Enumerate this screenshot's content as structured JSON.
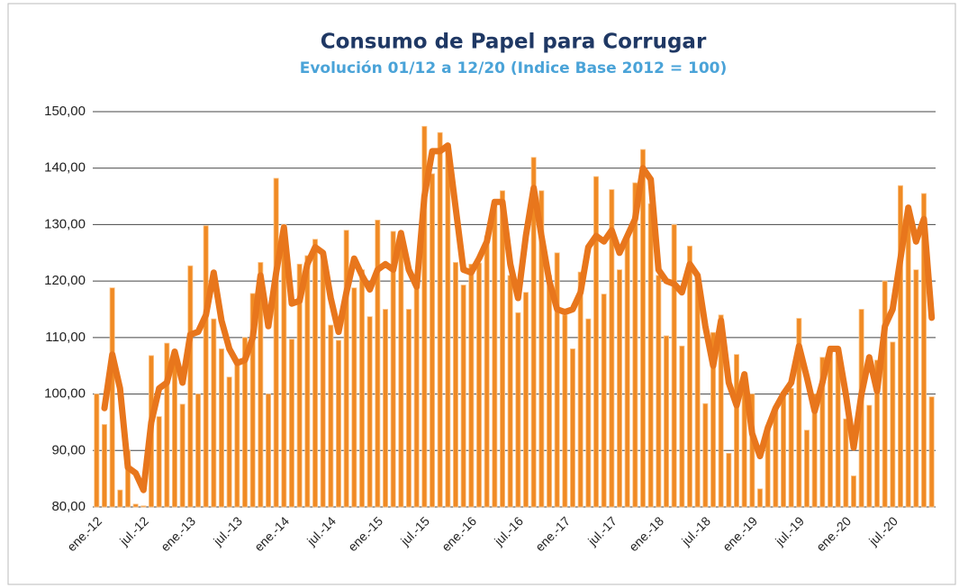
{
  "chart_data": {
    "type": "bar",
    "title": "Consumo de Papel para  Corrugar",
    "subtitle": "Evolución  01/12 a 12/20 (Indice Base 2012 = 100)",
    "categories": [
      "ene.-12",
      null,
      null,
      null,
      null,
      null,
      "jul.-12",
      null,
      null,
      null,
      null,
      null,
      "ene.-13",
      null,
      null,
      null,
      null,
      null,
      "jul.-13",
      null,
      null,
      null,
      null,
      null,
      "ene.-14",
      null,
      null,
      null,
      null,
      null,
      "jul.-14",
      null,
      null,
      null,
      null,
      null,
      "ene.-15",
      null,
      null,
      null,
      null,
      null,
      "jul.-15",
      null,
      null,
      null,
      null,
      null,
      "ene.-16",
      null,
      null,
      null,
      null,
      null,
      "jul.-16",
      null,
      null,
      null,
      null,
      null,
      "ene.-17",
      null,
      null,
      null,
      null,
      null,
      "jul.-17",
      null,
      null,
      null,
      null,
      null,
      "ene.-18",
      null,
      null,
      null,
      null,
      null,
      "jul.-18",
      null,
      null,
      null,
      null,
      null,
      "ene.-19",
      null,
      null,
      null,
      null,
      null,
      "jul.-19",
      null,
      null,
      null,
      null,
      null,
      "ene.-20",
      null,
      null,
      null,
      null,
      null,
      "jul.-20",
      null,
      null,
      null,
      null,
      null
    ],
    "series": [
      {
        "type": "bar",
        "color": "#f08a24",
        "values": [
          100,
          94.6,
          118.8,
          83,
          90,
          80.5,
          80.2,
          106.8,
          96,
          109,
          107,
          98.2,
          122.7,
          100,
          129.8,
          113.3,
          108,
          103,
          106,
          110,
          117.8,
          123.3,
          100,
          138.2,
          130,
          109.7,
          123,
          124.5,
          127.4,
          125,
          112.2,
          109.5,
          129,
          118.8,
          122,
          113.7,
          130.8,
          115,
          128.8,
          128.8,
          115,
          121,
          147.4,
          139,
          146.3,
          144,
          123.3,
          119.3,
          123,
          123.2,
          128,
          133.3,
          136,
          121,
          114.4,
          118,
          141.9,
          136,
          121,
          125,
          114,
          108,
          121.6,
          113.3,
          138.5,
          117.7,
          136.2,
          122,
          128,
          137.4,
          143.3,
          133.7,
          121,
          110.3,
          130,
          108.5,
          126.2,
          121,
          98.3,
          110.9,
          114,
          89.5,
          107,
          103,
          100,
          83.2,
          94.3,
          97,
          100.3,
          101,
          113.4,
          93.6,
          100,
          106.5,
          108.2,
          107,
          95.6,
          85.5,
          115,
          98,
          106,
          120,
          109.2,
          136.9,
          131,
          122,
          135.5,
          99.5
        ]
      },
      {
        "type": "line",
        "color": "#e8761c",
        "values": [
          null,
          97.5,
          107,
          101,
          87,
          86,
          83,
          95,
          101,
          102,
          107.5,
          102,
          110.5,
          111,
          114,
          121.5,
          113,
          108,
          105.5,
          106,
          110,
          121,
          112,
          121.5,
          129.5,
          116,
          116.5,
          123,
          126,
          125,
          117,
          111,
          118,
          124,
          121,
          118.5,
          122,
          123,
          122,
          128.5,
          122,
          119,
          135,
          143,
          143,
          144,
          133,
          122,
          121.5,
          124,
          127,
          134,
          134,
          123,
          117,
          128,
          136.5,
          128,
          120,
          115,
          114.5,
          115,
          118,
          126,
          128,
          127,
          129,
          125,
          128,
          131,
          140,
          138,
          122,
          120,
          119.5,
          118,
          123,
          121,
          112,
          105,
          113,
          102,
          98,
          103.5,
          93,
          89,
          94,
          97.5,
          100,
          102,
          108.5,
          103,
          97,
          102,
          108,
          108,
          100,
          90.5,
          100,
          106.5,
          100.5,
          112,
          115,
          124,
          133,
          127,
          131,
          113.5
        ]
      }
    ],
    "ylim": [
      80,
      150
    ],
    "yticks": [
      {
        "value": 80,
        "label": "80,00"
      },
      {
        "value": 90,
        "label": "90,00"
      },
      {
        "value": 100,
        "label": "100,00"
      },
      {
        "value": 110,
        "label": "110,00"
      },
      {
        "value": 120,
        "label": "120,00"
      },
      {
        "value": 130,
        "label": "130,00"
      },
      {
        "value": 140,
        "label": "140,00"
      },
      {
        "value": 150,
        "label": "150,00"
      }
    ],
    "grid": true
  }
}
